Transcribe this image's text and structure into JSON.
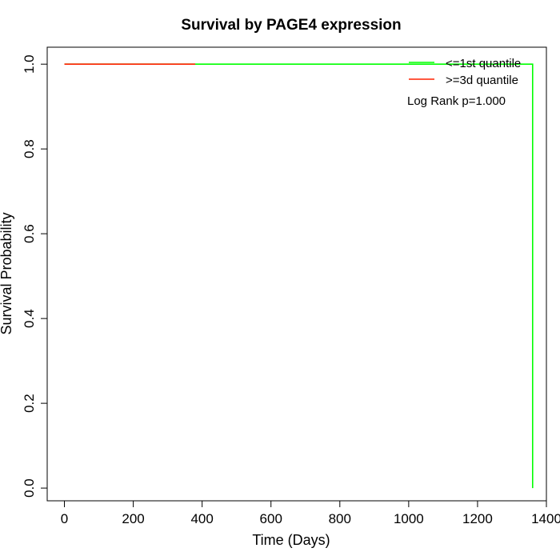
{
  "chart_data": {
    "type": "line",
    "title": "Survival by PAGE4 expression",
    "xlabel": "Time (Days)",
    "ylabel": "Survival Probability",
    "xlim": [
      -50,
      1400
    ],
    "ylim": [
      -0.03,
      1.04
    ],
    "x_ticks": [
      0,
      200,
      400,
      600,
      800,
      1000,
      1200,
      1400
    ],
    "y_ticks": [
      0.0,
      0.2,
      0.4,
      0.6,
      0.8,
      1.0
    ],
    "x_tick_labels": [
      "0",
      "200",
      "400",
      "600",
      "800",
      "1000",
      "1200",
      "1400"
    ],
    "y_tick_labels": [
      "0.0",
      "0.2",
      "0.4",
      "0.6",
      "0.8",
      "1.0"
    ],
    "grid": false,
    "legend_position": "top-right",
    "series": [
      {
        "name": "<=1st quantile",
        "color": "#00ff00",
        "step": true,
        "points": [
          [
            0,
            1.0
          ],
          [
            1360,
            1.0
          ],
          [
            1360,
            0.0
          ]
        ]
      },
      {
        "name": ">=3d quantile",
        "color": "#ff2000",
        "step": true,
        "points": [
          [
            0,
            1.0
          ],
          [
            380,
            1.0
          ]
        ]
      }
    ],
    "annotation": "Log Rank p=1.000"
  }
}
